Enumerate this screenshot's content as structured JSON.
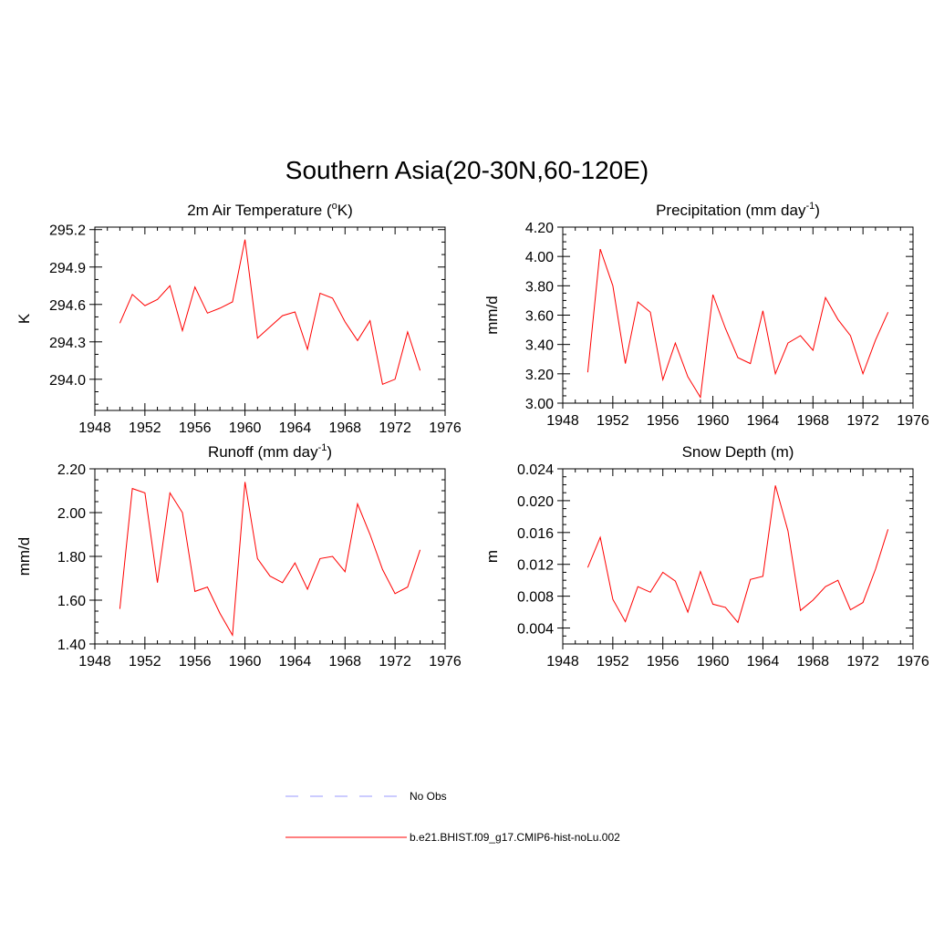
{
  "figure": {
    "title": "Southern Asia(20-30N,60-120E)"
  },
  "legend": [
    {
      "label": "No Obs",
      "color": "#9999ff",
      "style": "dashed"
    },
    {
      "label": "b.e21.BHIST.f09_g17.CMIP6-hist-noLu.002",
      "color": "#ff0000",
      "style": "solid"
    }
  ],
  "chart_data": [
    {
      "type": "line",
      "title": "2m Air Temperature (",
      "title_sup": "o",
      "title_after": "K)",
      "ylabel": "K",
      "xlim": [
        1948,
        1976
      ],
      "xticks": [
        1948,
        1952,
        1956,
        1960,
        1964,
        1968,
        1972,
        1976
      ],
      "xtick_labels": [
        "1948",
        "1952",
        "1956",
        "1960",
        "1964",
        "1968",
        "1972",
        "1976"
      ],
      "ylim": [
        293.75,
        295.22
      ],
      "yticks": [
        294.0,
        294.3,
        294.6,
        294.9,
        295.2
      ],
      "ytick_labels": [
        "294.0",
        "294.3",
        "294.6",
        "294.9",
        "295.2"
      ],
      "yminor": 0.1,
      "series": [
        {
          "color": "#ff0000",
          "x": [
            1950,
            1951,
            1952,
            1953,
            1954,
            1955,
            1956,
            1957,
            1958,
            1959,
            1960,
            1961,
            1962,
            1963,
            1964,
            1965,
            1966,
            1967,
            1968,
            1969,
            1970,
            1971,
            1972,
            1973,
            1974
          ],
          "values": [
            294.45,
            294.68,
            294.59,
            294.64,
            294.75,
            294.39,
            294.74,
            294.53,
            294.57,
            294.62,
            295.12,
            294.33,
            294.42,
            294.51,
            294.54,
            294.24,
            294.69,
            294.65,
            294.46,
            294.31,
            294.47,
            293.96,
            294.0,
            294.38,
            294.07
          ]
        }
      ]
    },
    {
      "type": "line",
      "title": "Precipitation (mm day",
      "title_sup": "-1",
      "title_after": ")",
      "ylabel": "mm/d",
      "xlim": [
        1948,
        1976
      ],
      "xticks": [
        1948,
        1952,
        1956,
        1960,
        1964,
        1968,
        1972,
        1976
      ],
      "xtick_labels": [
        "1948",
        "1952",
        "1956",
        "1960",
        "1964",
        "1968",
        "1972",
        "1976"
      ],
      "ylim": [
        3.0,
        4.2
      ],
      "yticks": [
        3.0,
        3.2,
        3.4,
        3.6,
        3.8,
        4.0,
        4.2
      ],
      "ytick_labels": [
        "3.00",
        "3.20",
        "3.40",
        "3.60",
        "3.80",
        "4.00",
        "4.20"
      ],
      "yminor": 0.05,
      "series": [
        {
          "color": "#ff0000",
          "x": [
            1950,
            1951,
            1952,
            1953,
            1954,
            1955,
            1956,
            1957,
            1958,
            1959,
            1960,
            1961,
            1962,
            1963,
            1964,
            1965,
            1966,
            1967,
            1968,
            1969,
            1970,
            1971,
            1972,
            1973,
            1974
          ],
          "values": [
            3.21,
            4.05,
            3.8,
            3.27,
            3.69,
            3.62,
            3.16,
            3.41,
            3.18,
            3.04,
            3.74,
            3.51,
            3.31,
            3.27,
            3.63,
            3.2,
            3.41,
            3.46,
            3.36,
            3.72,
            3.57,
            3.46,
            3.2,
            3.43,
            3.62
          ]
        }
      ]
    },
    {
      "type": "line",
      "title": "Runoff (mm day",
      "title_sup": "-1",
      "title_after": ")",
      "ylabel": "mm/d",
      "xlim": [
        1948,
        1976
      ],
      "xticks": [
        1948,
        1952,
        1956,
        1960,
        1964,
        1968,
        1972,
        1976
      ],
      "xtick_labels": [
        "1948",
        "1952",
        "1956",
        "1960",
        "1964",
        "1968",
        "1972",
        "1976"
      ],
      "ylim": [
        1.4,
        2.2
      ],
      "yticks": [
        1.4,
        1.6,
        1.8,
        2.0,
        2.2
      ],
      "ytick_labels": [
        "1.40",
        "1.60",
        "1.80",
        "2.00",
        "2.20"
      ],
      "yminor": 0.05,
      "series": [
        {
          "color": "#ff0000",
          "x": [
            1950,
            1951,
            1952,
            1953,
            1954,
            1955,
            1956,
            1957,
            1958,
            1959,
            1960,
            1961,
            1962,
            1963,
            1964,
            1965,
            1966,
            1967,
            1968,
            1969,
            1970,
            1971,
            1972,
            1973,
            1974
          ],
          "values": [
            1.56,
            2.11,
            2.09,
            1.68,
            2.09,
            2.0,
            1.64,
            1.66,
            1.54,
            1.44,
            2.14,
            1.79,
            1.71,
            1.68,
            1.77,
            1.65,
            1.79,
            1.8,
            1.73,
            2.04,
            1.9,
            1.74,
            1.63,
            1.66,
            1.83
          ]
        }
      ]
    },
    {
      "type": "line",
      "title": "Snow Depth (m)",
      "title_sup": "",
      "title_after": "",
      "ylabel": "m",
      "xlim": [
        1948,
        1976
      ],
      "xticks": [
        1948,
        1952,
        1956,
        1960,
        1964,
        1968,
        1972,
        1976
      ],
      "xtick_labels": [
        "1948",
        "1952",
        "1956",
        "1960",
        "1964",
        "1968",
        "1972",
        "1976"
      ],
      "ylim": [
        0.002,
        0.024
      ],
      "yticks": [
        0.004,
        0.008,
        0.012,
        0.016,
        0.02,
        0.024
      ],
      "ytick_labels": [
        "0.004",
        "0.008",
        "0.012",
        "0.016",
        "0.020",
        "0.024"
      ],
      "yminor": 0.001,
      "series": [
        {
          "color": "#ff0000",
          "x": [
            1950,
            1951,
            1952,
            1953,
            1954,
            1955,
            1956,
            1957,
            1958,
            1959,
            1960,
            1961,
            1962,
            1963,
            1964,
            1965,
            1966,
            1967,
            1968,
            1969,
            1970,
            1971,
            1972,
            1973,
            1974
          ],
          "values": [
            0.0116,
            0.0154,
            0.0076,
            0.0048,
            0.0092,
            0.0085,
            0.011,
            0.0099,
            0.006,
            0.0111,
            0.007,
            0.0066,
            0.0047,
            0.0101,
            0.0105,
            0.0219,
            0.0162,
            0.0062,
            0.0075,
            0.0092,
            0.01,
            0.0063,
            0.0072,
            0.0114,
            0.0164
          ]
        }
      ]
    }
  ]
}
